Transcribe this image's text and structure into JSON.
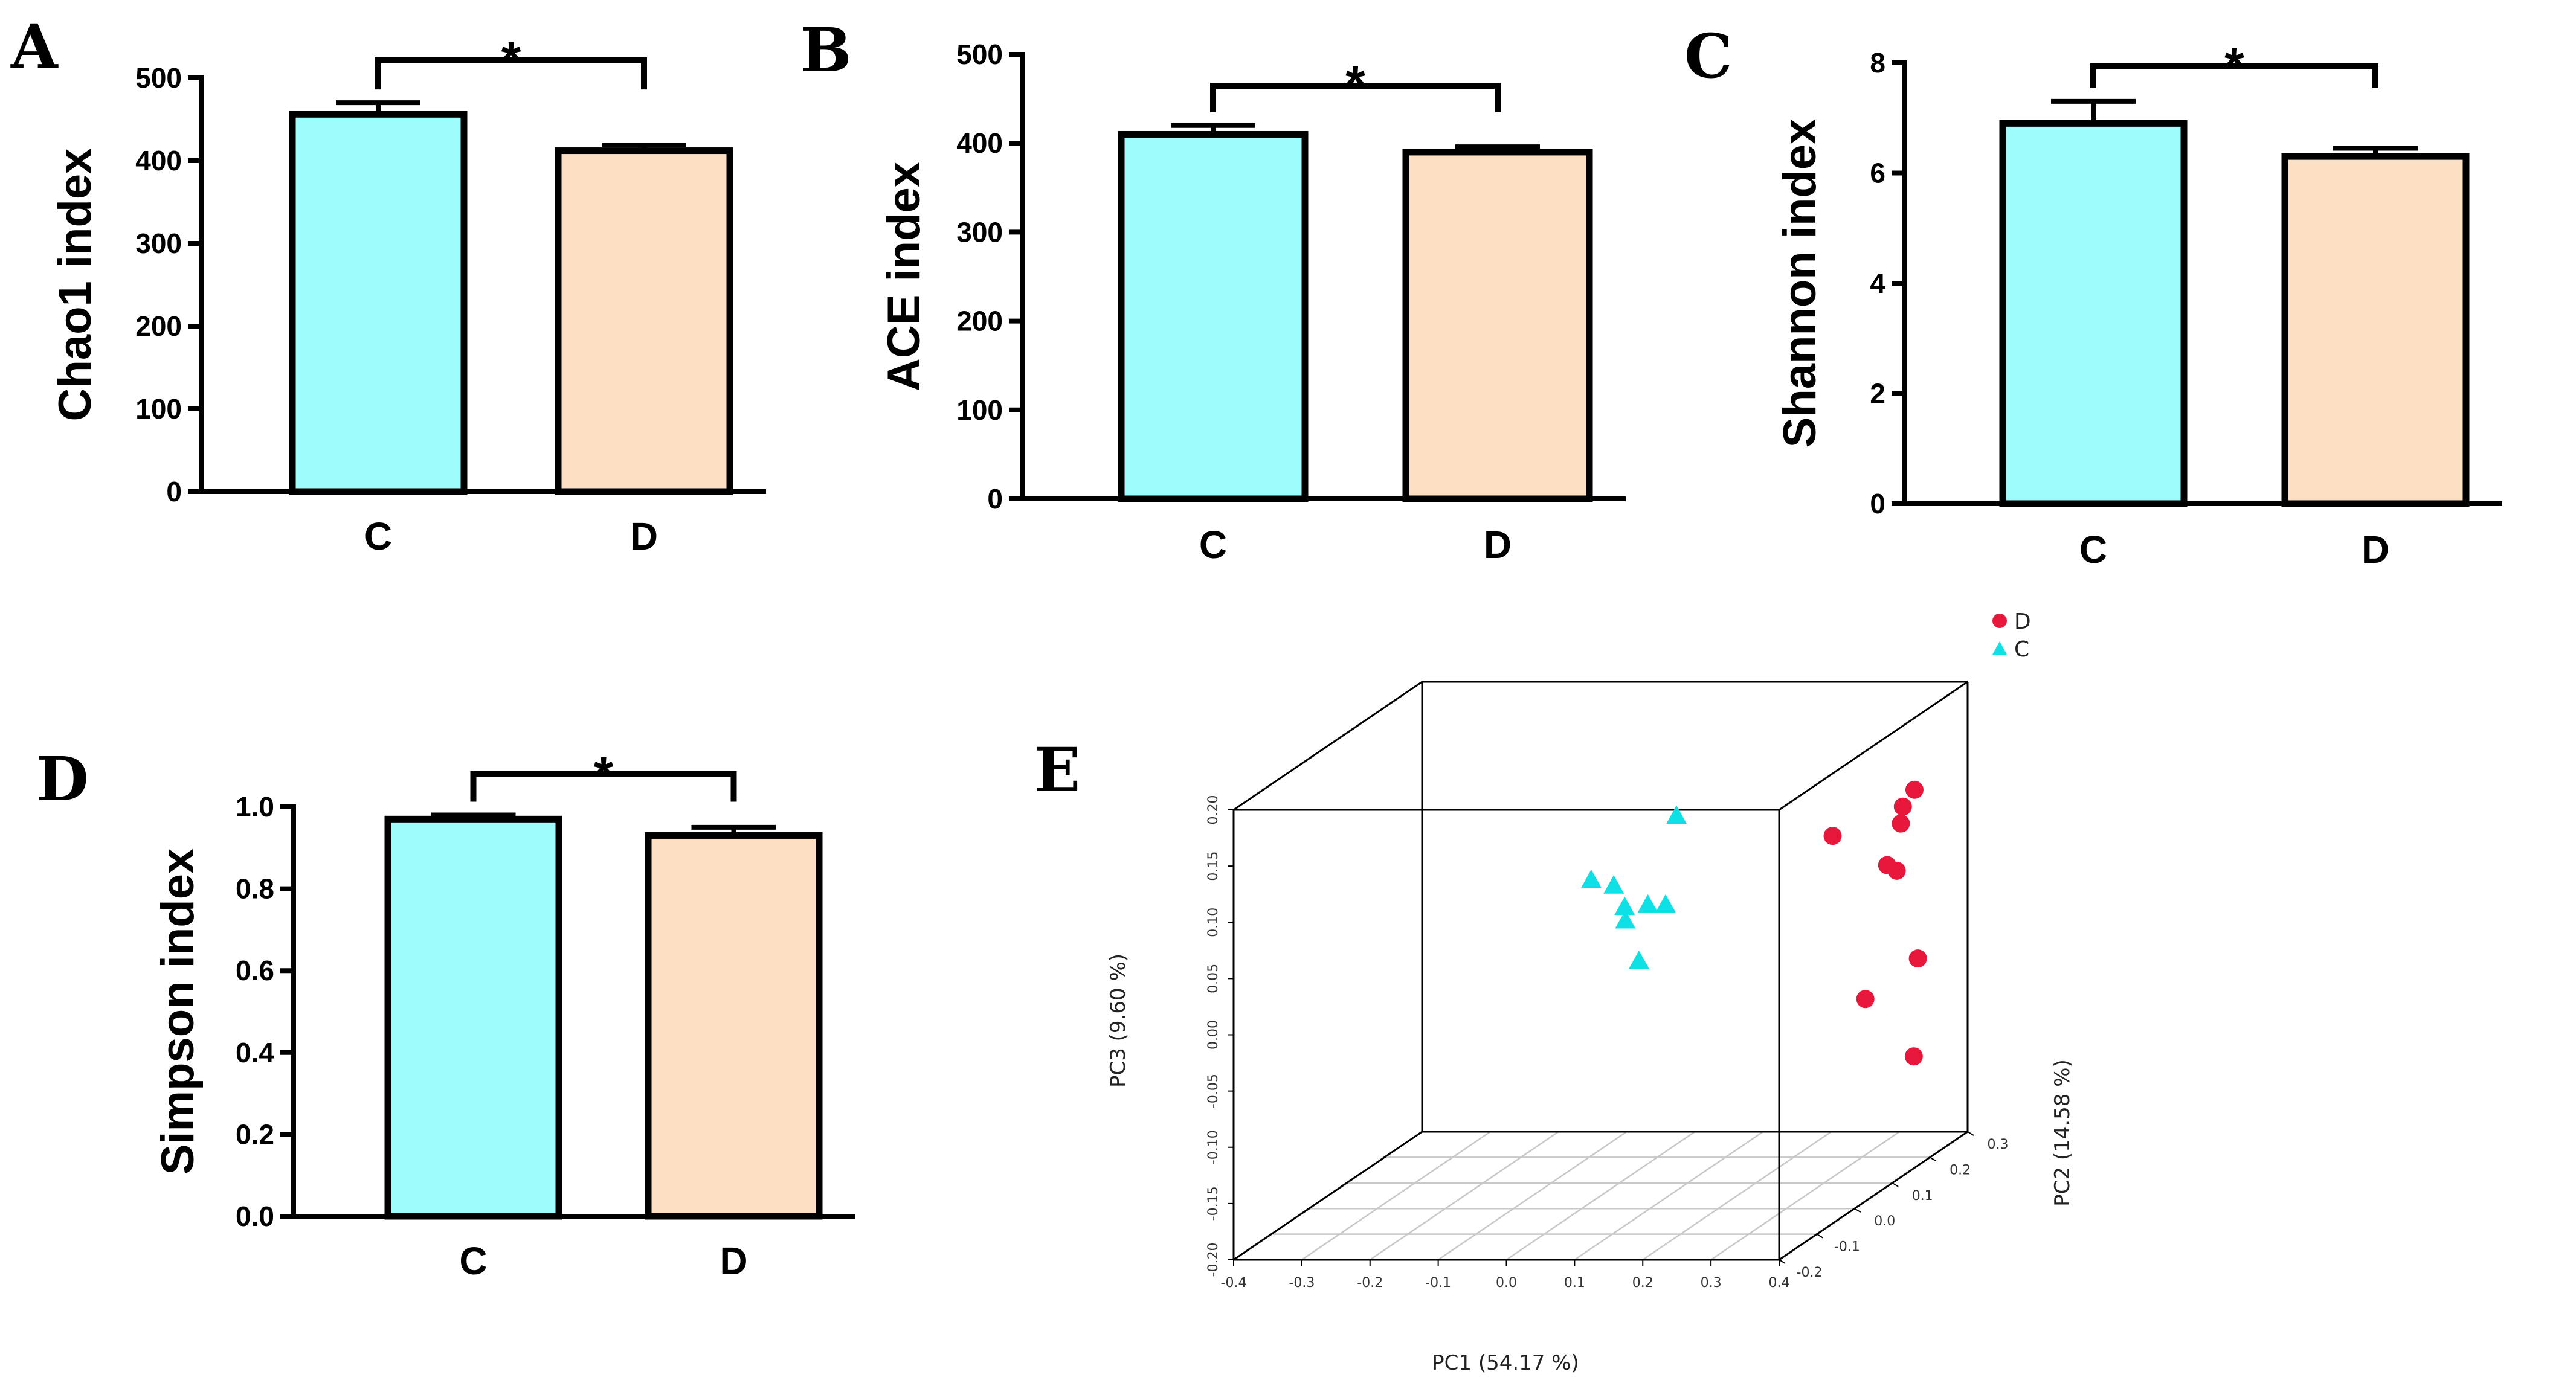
{
  "colors": {
    "C": "#9ffcfc",
    "D": "#fde0c4",
    "scatter_D": "#e8173c",
    "scatter_C": "#0ee0e6"
  },
  "panel_letters": {
    "A": "A",
    "B": "B",
    "C": "C",
    "D": "D",
    "E": "E"
  },
  "chart_data": [
    {
      "id": "A",
      "type": "bar",
      "ylabel": "Chao1 index",
      "categories": [
        "C",
        "D"
      ],
      "values": [
        456,
        412
      ],
      "errors": [
        14,
        7
      ],
      "ylim": [
        0,
        500
      ],
      "yticks": [
        0,
        100,
        200,
        300,
        400,
        500
      ],
      "tick_labels": [
        "0",
        "100",
        "200",
        "300",
        "400",
        "500"
      ],
      "significance": "*"
    },
    {
      "id": "B",
      "type": "bar",
      "ylabel": "ACE index",
      "categories": [
        "C",
        "D"
      ],
      "values": [
        410,
        390
      ],
      "errors": [
        10,
        6
      ],
      "ylim": [
        0,
        500
      ],
      "yticks": [
        0,
        100,
        200,
        300,
        400,
        500
      ],
      "tick_labels": [
        "0",
        "100",
        "200",
        "300",
        "400",
        "500"
      ],
      "significance": "*"
    },
    {
      "id": "C",
      "type": "bar",
      "ylabel": "Shannon index",
      "categories": [
        "C",
        "D"
      ],
      "values": [
        6.9,
        6.3
      ],
      "errors": [
        0.4,
        0.15
      ],
      "ylim": [
        0,
        8
      ],
      "yticks": [
        0,
        2,
        4,
        6,
        8
      ],
      "tick_labels": [
        "0",
        "2",
        "4",
        "6",
        "8"
      ],
      "significance": "*"
    },
    {
      "id": "D",
      "type": "bar",
      "ylabel": "Simpson index",
      "categories": [
        "C",
        "D"
      ],
      "values": [
        0.97,
        0.93
      ],
      "errors": [
        0.01,
        0.02
      ],
      "ylim": [
        0,
        1.0
      ],
      "yticks": [
        0,
        0.2,
        0.4,
        0.6,
        0.8,
        1.0
      ],
      "tick_labels": [
        "0.0",
        "0.2",
        "0.4",
        "0.6",
        "0.8",
        "1.0"
      ],
      "significance": "*"
    },
    {
      "id": "E",
      "type": "scatter3d",
      "xlabel": "PC1 (54.17 %)",
      "ylabel": "PC2 (14.58 %)",
      "zlabel": "PC3 (9.60 %)",
      "xlim": [
        -0.4,
        0.4
      ],
      "ylim": [
        -0.2,
        0.3
      ],
      "zlim": [
        -0.2,
        0.2
      ],
      "xticks": [
        -0.4,
        -0.3,
        -0.2,
        -0.1,
        0.0,
        0.1,
        0.2,
        0.3,
        0.4
      ],
      "xtick_labels": [
        "-0.4",
        "-0.3",
        "-0.2",
        "-0.1",
        "0.0",
        "0.1",
        "0.2",
        "0.3",
        "0.4"
      ],
      "yticks": [
        -0.2,
        -0.1,
        0.0,
        0.1,
        0.2,
        0.3
      ],
      "ytick_labels": [
        "-0.2",
        "-0.1",
        "0.0",
        "0.1",
        "0.2",
        "0.3"
      ],
      "zticks": [
        -0.2,
        -0.15,
        -0.1,
        -0.05,
        0.0,
        0.05,
        0.1,
        0.15,
        0.2
      ],
      "ztick_labels": [
        "-0.20",
        "-0.15",
        "-0.10",
        "-0.05",
        "0.00",
        "0.05",
        "0.10",
        "0.15",
        "0.20"
      ],
      "legend": [
        {
          "label": "D",
          "marker": "circle"
        },
        {
          "label": "C",
          "marker": "triangle"
        }
      ],
      "series": [
        {
          "name": "D",
          "marker": "circle",
          "points": [
            [
              0.322,
              0.3,
              0.104
            ],
            [
              0.202,
              0.3,
              0.063
            ],
            [
              0.302,
              0.3,
              0.074
            ],
            [
              0.282,
              0.3,
              0.037
            ],
            [
              0.305,
              0.3,
              0.089
            ],
            [
              0.296,
              0.3,
              0.032
            ],
            [
              0.25,
              0.3,
              -0.082
            ],
            [
              0.327,
              0.3,
              -0.046
            ],
            [
              0.321,
              0.3,
              -0.133
            ]
          ]
        },
        {
          "name": "C",
          "marker": "triangle",
          "points": [
            [
              -0.027,
              0.3,
              0.081
            ],
            [
              -0.152,
              0.3,
              0.024
            ],
            [
              -0.119,
              0.3,
              0.019
            ],
            [
              -0.043,
              0.3,
              0.002
            ],
            [
              -0.069,
              0.3,
              0.002
            ],
            [
              -0.103,
              0.3,
              0.0
            ],
            [
              -0.102,
              0.3,
              -0.012
            ],
            [
              -0.082,
              0.3,
              -0.048
            ]
          ]
        }
      ]
    }
  ]
}
